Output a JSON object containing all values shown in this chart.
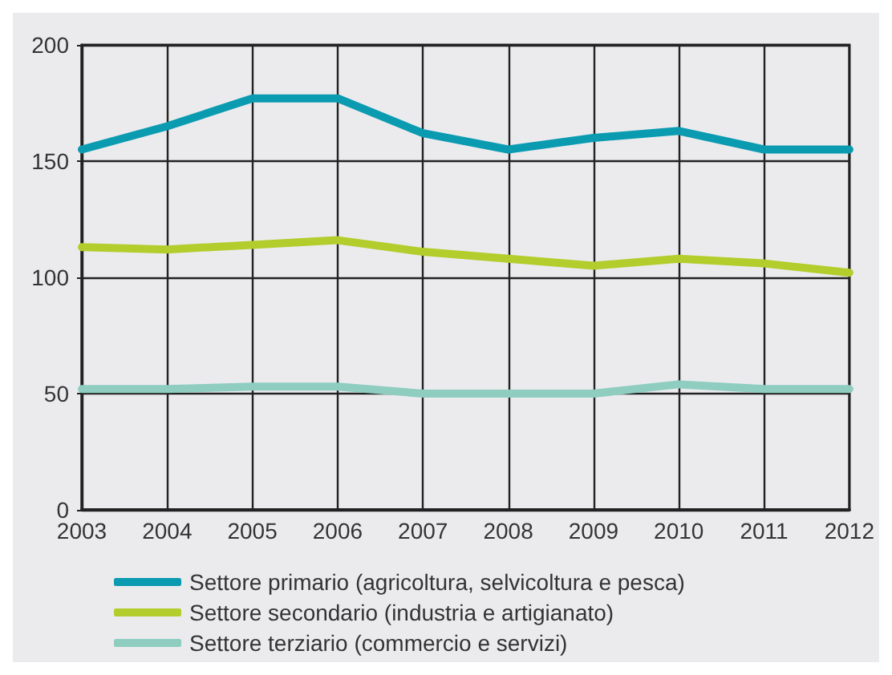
{
  "chart_data": {
    "type": "line",
    "categories": [
      "2003",
      "2004",
      "2005",
      "2006",
      "2007",
      "2008",
      "2009",
      "2010",
      "2011",
      "2012"
    ],
    "series": [
      {
        "name": "Settore primario (agricoltura, selvicoltura e pesca)",
        "color": "#0a9bb1",
        "values": [
          155,
          165,
          177,
          177,
          162,
          155,
          160,
          163,
          155,
          155
        ]
      },
      {
        "name": "Settore secondario (industria e artigianato)",
        "color": "#b3cd2c",
        "values": [
          113,
          112,
          114,
          116,
          111,
          108,
          105,
          108,
          106,
          102
        ]
      },
      {
        "name": "Settore terziario (commercio e servizi)",
        "color": "#8ecdc0",
        "values": [
          52,
          52,
          53,
          53,
          50,
          50,
          50,
          54,
          52,
          52
        ]
      }
    ],
    "ylim": [
      0,
      200
    ],
    "yticks": [
      0,
      50,
      100,
      150,
      200
    ],
    "grid": true,
    "legend": "bottom",
    "marker": "none",
    "line_style": "solid"
  }
}
